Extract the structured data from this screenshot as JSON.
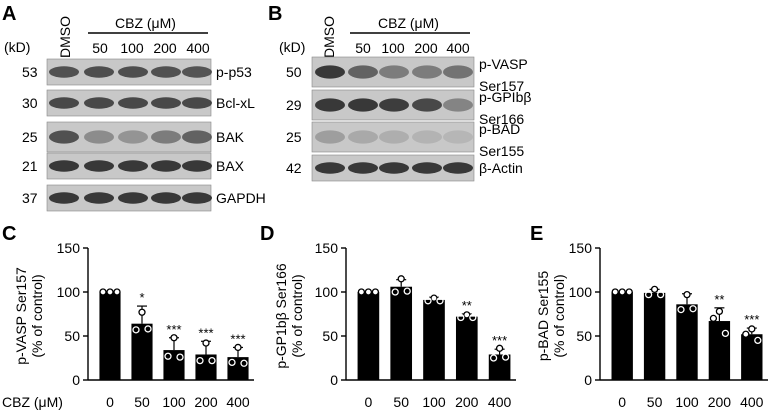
{
  "panels": {
    "A": {
      "letter": "A",
      "kd_label": "(kD)",
      "control_label": "DMSO",
      "group_label": "CBZ (μM)",
      "doses": [
        "50",
        "100",
        "200",
        "400"
      ],
      "blots": [
        {
          "kd": "53",
          "protein": "p-p53",
          "intensity": [
            0.7,
            0.72,
            0.72,
            0.7,
            0.68
          ]
        },
        {
          "kd": "30",
          "protein": "Bcl-xL",
          "intensity": [
            0.75,
            0.75,
            0.75,
            0.75,
            0.75
          ]
        },
        {
          "kd": "25",
          "protein": "BAK",
          "intensity": [
            0.7,
            0.35,
            0.3,
            0.45,
            0.6
          ]
        },
        {
          "kd": "21",
          "protein": "BAX",
          "intensity": [
            0.85,
            0.85,
            0.85,
            0.85,
            0.85
          ]
        },
        {
          "kd": "37",
          "protein": "GAPDH",
          "intensity": [
            0.85,
            0.85,
            0.85,
            0.85,
            0.85
          ]
        }
      ]
    },
    "B": {
      "letter": "B",
      "kd_label": "(kD)",
      "control_label": "DMSO",
      "group_label": "CBZ (μM)",
      "doses": [
        "50",
        "100",
        "200",
        "400"
      ],
      "blots": [
        {
          "kd": "50",
          "protein_lines": [
            "p-VASP",
            "Ser157"
          ],
          "intensity": [
            0.85,
            0.6,
            0.45,
            0.45,
            0.5
          ]
        },
        {
          "kd": "29",
          "protein_lines": [
            "p-GPIbβ",
            "Ser166"
          ],
          "intensity": [
            0.85,
            0.85,
            0.82,
            0.75,
            0.4
          ]
        },
        {
          "kd": "25",
          "protein_lines": [
            "p-BAD",
            "Ser155"
          ],
          "intensity": [
            0.25,
            0.18,
            0.15,
            0.12,
            0.1
          ]
        },
        {
          "kd": "42",
          "protein_lines": [
            "β-Actin"
          ],
          "intensity": [
            0.85,
            0.85,
            0.85,
            0.85,
            0.85
          ]
        }
      ]
    }
  },
  "chart_data": [
    {
      "letter": "C",
      "type": "bar",
      "ylabel": "p-VASP Ser157",
      "ylabel2": "(% of control)",
      "xaxis_label": "CBZ (μM)",
      "categories": [
        "0",
        "50",
        "100",
        "200",
        "400"
      ],
      "values": [
        100,
        64,
        34,
        29,
        26
      ],
      "errors": [
        0,
        20,
        14,
        15,
        11
      ],
      "points": [
        [
          100,
          100,
          100
        ],
        [
          77,
          57,
          58
        ],
        [
          48,
          27,
          26
        ],
        [
          42,
          22,
          22
        ],
        [
          37,
          20,
          19
        ]
      ],
      "significance": [
        "",
        "*",
        "***",
        "***",
        "***"
      ],
      "ylim": [
        0,
        150
      ],
      "yticks": [
        "0",
        "50",
        "100",
        "150"
      ]
    },
    {
      "letter": "D",
      "type": "bar",
      "ylabel": "p-GP1bβ Ser166",
      "ylabel2": "(% of control)",
      "categories": [
        "0",
        "50",
        "100",
        "200",
        "400"
      ],
      "values": [
        100,
        106,
        91,
        72,
        29
      ],
      "errors": [
        0,
        8,
        3,
        3,
        6
      ],
      "points": [
        [
          100,
          100,
          100
        ],
        [
          115,
          100,
          101
        ],
        [
          93,
          90,
          90
        ],
        [
          74,
          71,
          71
        ],
        [
          36,
          25,
          26
        ]
      ],
      "significance": [
        "",
        "",
        "",
        "**",
        "***"
      ],
      "ylim": [
        0,
        150
      ],
      "yticks": [
        "0",
        "50",
        "100",
        "150"
      ]
    },
    {
      "letter": "E",
      "type": "bar",
      "ylabel": "p-BAD Ser155",
      "ylabel2": "(% of control)",
      "categories": [
        "0",
        "50",
        "100",
        "200",
        "400"
      ],
      "values": [
        100,
        99,
        86,
        67,
        52
      ],
      "errors": [
        0,
        4,
        12,
        15,
        7
      ],
      "points": [
        [
          100,
          100,
          100
        ],
        [
          103,
          97,
          97
        ],
        [
          97,
          80,
          81
        ],
        [
          78,
          70,
          53
        ],
        [
          58,
          52,
          45
        ]
      ],
      "significance": [
        "",
        "",
        "",
        "**",
        "***"
      ],
      "ylim": [
        0,
        150
      ],
      "yticks": [
        "0",
        "50",
        "100",
        "150"
      ]
    }
  ],
  "colors": {
    "bar": "#000000",
    "blot_background": "#c8c8c8",
    "band": "#1e1e1e"
  }
}
